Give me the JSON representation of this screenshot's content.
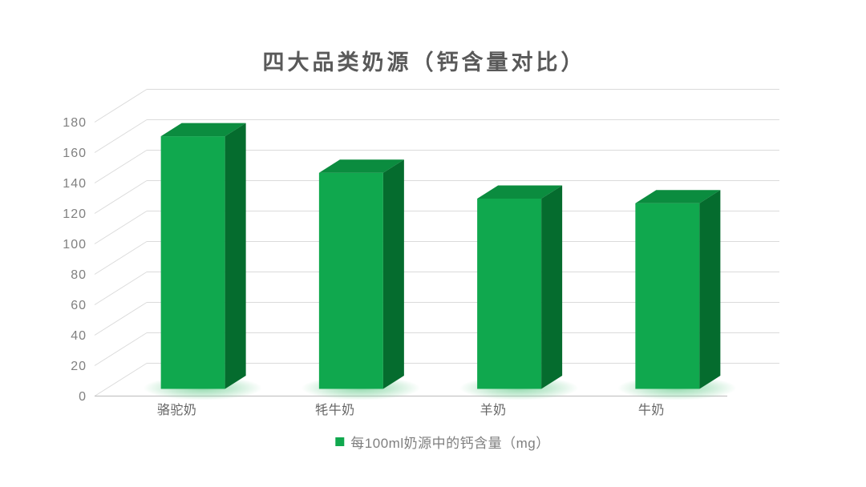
{
  "chart_data": {
    "type": "bar",
    "variant": "3d-column",
    "title": "四大品类奶源（钙含量对比）",
    "categories": [
      "骆驼奶",
      "牦牛奶",
      "羊奶",
      "牛奶"
    ],
    "series": [
      {
        "name": "每100ml奶源中的钙含量（mg）",
        "values": [
          166,
          142,
          125,
          122
        ]
      }
    ],
    "xlabel": "",
    "ylabel": "",
    "ylim": [
      0,
      180
    ],
    "ytick_interval": 20,
    "ytick_labels": [
      "0",
      "20",
      "40",
      "60",
      "80",
      "100",
      "120",
      "140",
      "160",
      "180"
    ],
    "grid": true,
    "legend": {
      "position": "bottom",
      "entries": [
        {
          "label": "每100ml奶源中的钙含量（mg）",
          "color": "#10a84e"
        }
      ]
    },
    "colors": {
      "background": "#ffffff",
      "bar_front": "#10a84e",
      "bar_top": "#0b8c3f",
      "bar_side": "#056c2e",
      "glow": "#7ed39e",
      "gridline": "#dbdbdb",
      "axis_line": "#c4c4c4",
      "title_text": "#595959",
      "tick_text": "#808080",
      "category_text": "#666666",
      "legend_text": "#7f7f7f"
    }
  }
}
